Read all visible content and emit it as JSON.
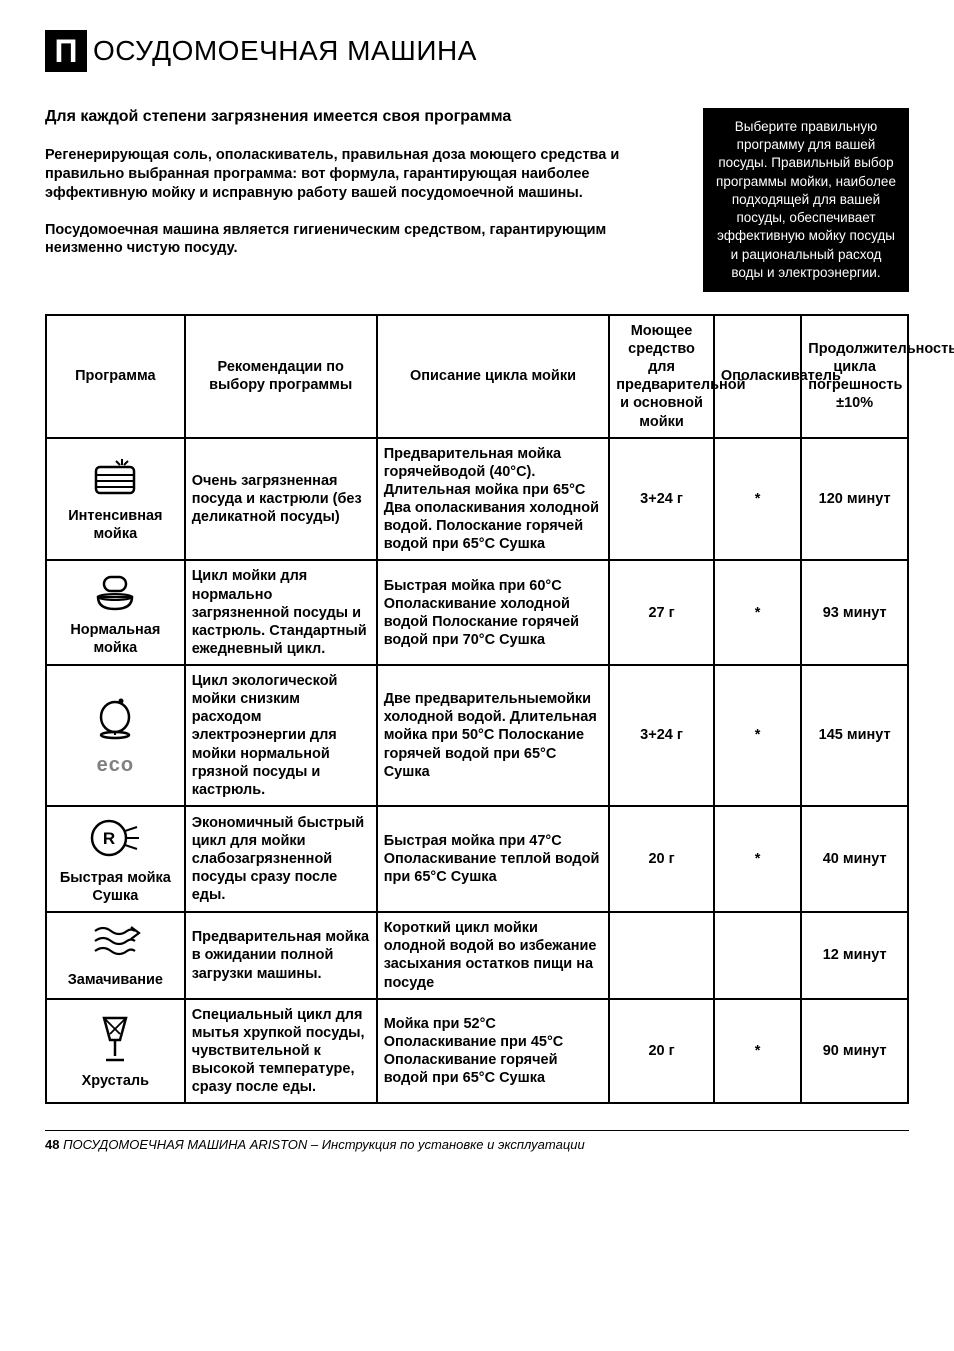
{
  "header": {
    "boxLetter": "П",
    "title": "ОСУДОМОЕЧНАЯ МАШИНА"
  },
  "intro": {
    "subtitle": "Для каждой степени загрязнения имеется своя программа",
    "p1": "Регенерирующая соль, ополаскиватель, правильная доза моющего средства и правильно выбранная программа: вот формула, гарантирующая наиболее эффективную мойку и исправную работу вашей посудомоечной машины.",
    "p2": "Посудомоечная машина является гигиеническим средством, гарантирующим неизменно чистую посуду."
  },
  "sidebar": "Выберите правильную программу для вашей посуды. Правильный выбор программы мойки, наиболее подходящей для вашей посуды, обеспечивает эффективную мойку посуды и рациональный расход воды и электроэнергии.",
  "table": {
    "headers": {
      "program": "Программа",
      "recommend": "Рекомендации по выбору программы",
      "description": "Описание цикла мойки",
      "detergent": "Моющее средство для предварительной и основной мойки",
      "rinse": "Ополаскиватель",
      "duration": "Продолжительность цикла погрешность ±10%"
    },
    "rows": [
      {
        "icon": "intensive",
        "name": "Интенсивная мойка",
        "recommend": "Очень загрязненная посуда и кастрюли (без деликатной посуды)",
        "description": "Предварительная мойка горячейводой (40°C). Длительная мойка при 65°C Два ополаскивания холодной водой. Полоскание горячей водой при 65°C Сушка",
        "detergent": "3+24 г",
        "rinse": "*",
        "duration": "120 минут"
      },
      {
        "icon": "normal",
        "name": "Нормальная мойка",
        "recommend": "Цикл мойки для нормально загрязненной посуды и кастрюль. Стандартный ежедневный цикл.",
        "description": "Быстрая мойка при 60°C Ополаскивание холодной водой Полоскание горячей водой при 70°C Сушка",
        "detergent": "27 г",
        "rinse": "*",
        "duration": "93 минут"
      },
      {
        "icon": "eco",
        "name": "eco",
        "recommend": "Цикл экологической мойки снизким расходом электроэнергии для мойки нормальной грязной посуды и кастрюль.",
        "description": "Две предварительныемойки холодной водой. Длительная мойка при 50°C Полоскание горячей водой при 65°C Сушка",
        "detergent": "3+24 г",
        "rinse": "*",
        "duration": "145 минут"
      },
      {
        "icon": "rapid",
        "name": "Быстрая мойка Сушка",
        "recommend": "Экономичный быстрый цикл для мойки слабозагрязненной посуды сразу после еды.",
        "description": "Быстрая мойка при 47°C Ополаскивание теплой водой при 65°C Сушка",
        "detergent": "20 г",
        "rinse": "*",
        "duration": "40 минут"
      },
      {
        "icon": "soak",
        "name": "Замачивание",
        "recommend": "Предварительная мойка в ожидании полной загрузки машины.",
        "description": "Короткий цикл мойки олодной водой во избежание засыхания остатков пищи на посуде",
        "detergent": "",
        "rinse": "",
        "duration": "12 минут"
      },
      {
        "icon": "crystal",
        "name": "Хрусталь",
        "recommend": "Специальный цикл для мытья хрупкой посуды, чувствительной к высокой температуре, сразу после еды.",
        "description": "Мойка при 52°C Ополаскивание при 45°C Ополаскивание горячей водой при 65°C Сушка",
        "detergent": "20 г",
        "rinse": "*",
        "duration": "90 минут"
      }
    ]
  },
  "footer": {
    "page": "48",
    "text": "ПОСУДОМОЕЧНАЯ МАШИНА ARISTON – Инструкция по установке и эксплуатации"
  },
  "style": {
    "iconStroke": "#000000",
    "ecoColor": "#808080"
  }
}
